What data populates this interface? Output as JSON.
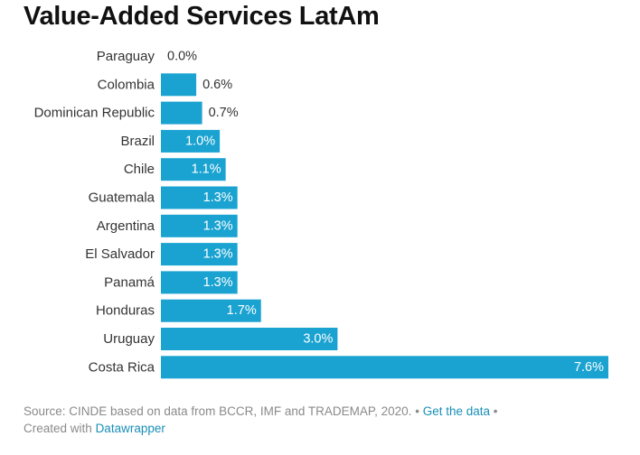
{
  "title": "Value-Added Services LatAm",
  "chart_data": {
    "type": "bar",
    "orientation": "horizontal",
    "title": "Value-Added Services LatAm",
    "categories": [
      "Paraguay",
      "Colombia",
      "Dominican Republic",
      "Brazil",
      "Chile",
      "Guatemala",
      "Argentina",
      "El Salvador",
      "Panamá",
      "Honduras",
      "Uruguay",
      "Costa Rica"
    ],
    "values": [
      0.0,
      0.6,
      0.7,
      1.0,
      1.1,
      1.3,
      1.3,
      1.3,
      1.3,
      1.7,
      3.0,
      7.6
    ],
    "value_labels": [
      "0.0%",
      "0.6%",
      "0.7%",
      "1.0%",
      "1.1%",
      "1.3%",
      "1.3%",
      "1.3%",
      "1.3%",
      "1.7%",
      "3.0%",
      "7.6%"
    ],
    "value_unit": "%",
    "xlim": [
      0,
      7.6
    ],
    "grid": false,
    "bar_color": "#1aa3d1"
  },
  "footer": {
    "source": "Source: CINDE based on data from BCCR, IMF and TRADEMAP, 2020.",
    "separator": "•",
    "get_data_link": "Get the data",
    "created_with": "Created with",
    "datawrapper_link": "Datawrapper"
  }
}
